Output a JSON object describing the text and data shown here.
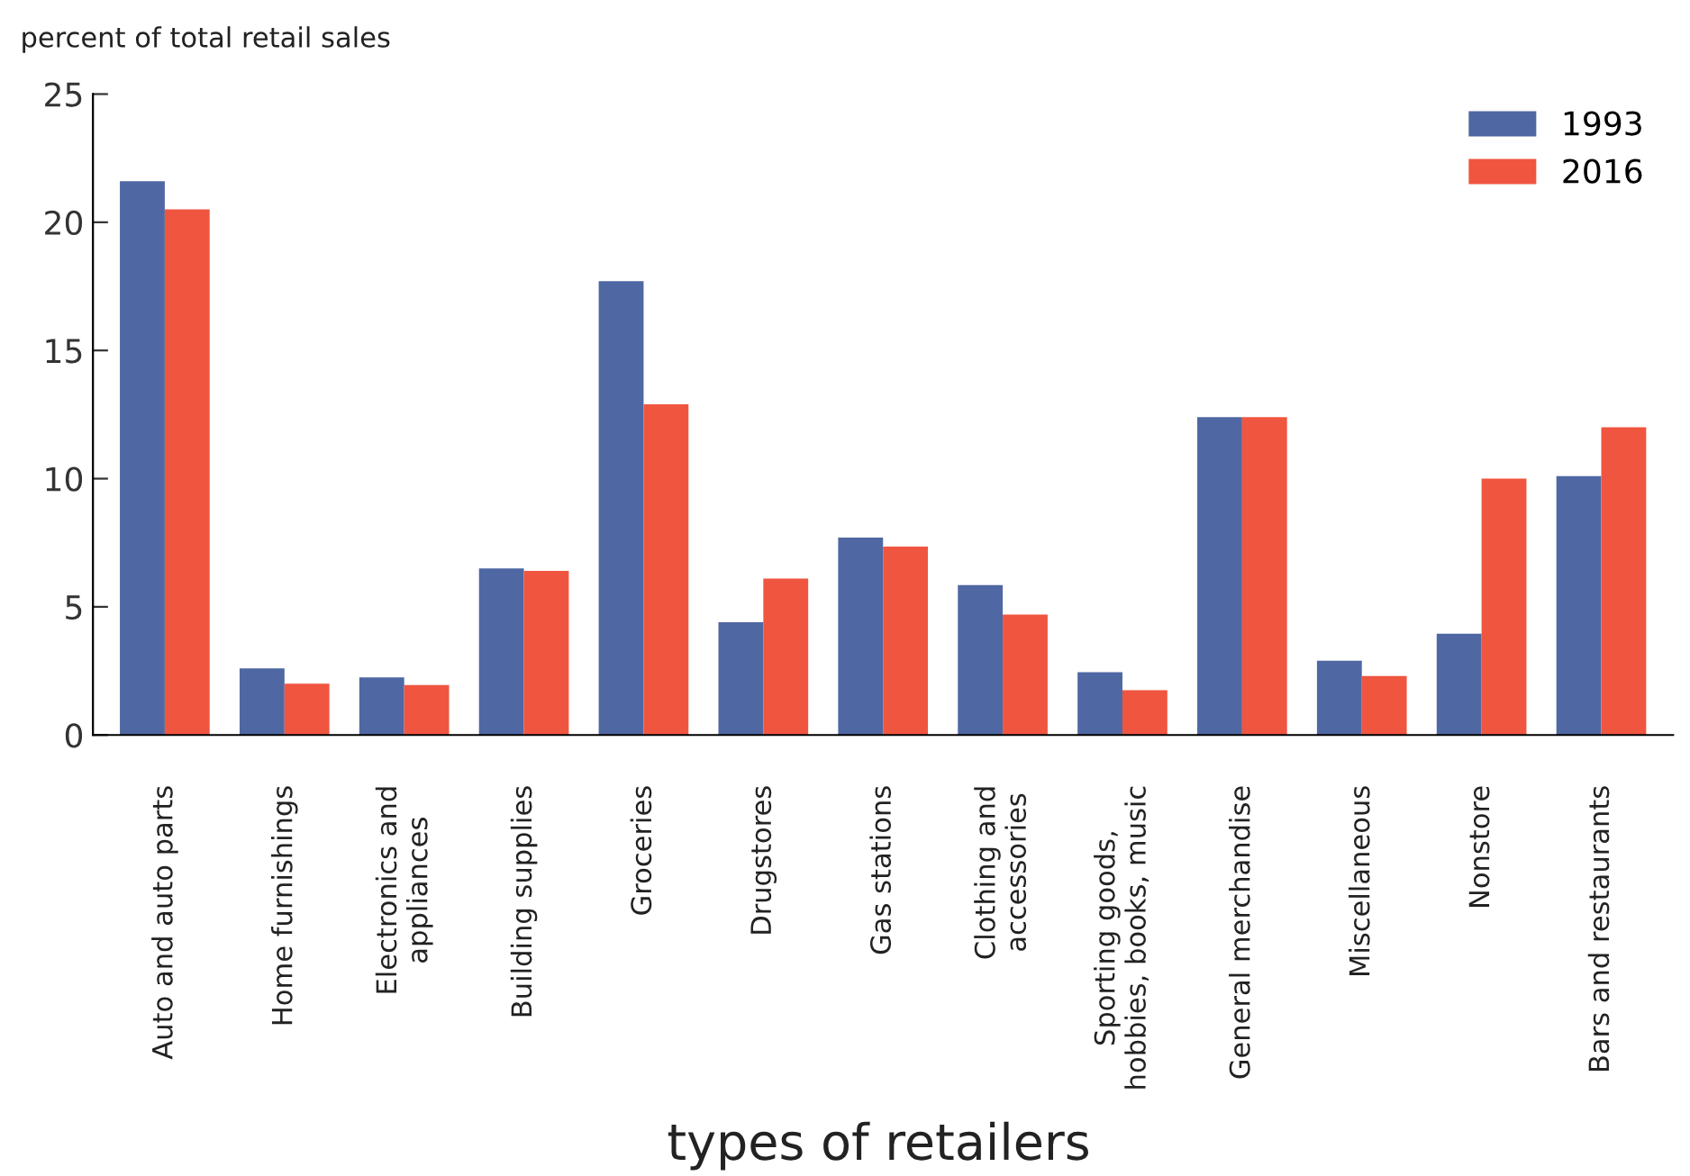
{
  "chart_data": {
    "type": "bar",
    "ylabel": "percent of total retail sales",
    "xlabel": "types of retailers",
    "categories": [
      "Auto and auto parts",
      "Home furnishings",
      "Electronics and\nappliances",
      "Building supplies",
      "Groceries",
      "Drugstores",
      "Gas stations",
      "Clothing and\naccessories",
      "Sporting goods,\nhobbies, books, music",
      "General merchandise",
      "Miscellaneous",
      "Nonstore",
      "Bars and restaurants"
    ],
    "series": [
      {
        "name": "1993",
        "color": "#4f68a3",
        "values": [
          21.6,
          2.6,
          2.25,
          6.5,
          17.7,
          4.4,
          7.7,
          5.85,
          2.45,
          12.4,
          2.9,
          3.95,
          10.1
        ]
      },
      {
        "name": "2016",
        "color": "#f05540",
        "values": [
          20.5,
          2.0,
          1.95,
          6.4,
          12.9,
          6.1,
          7.35,
          4.7,
          1.75,
          12.4,
          2.3,
          10.0,
          12.0
        ]
      }
    ],
    "ylim": [
      0,
      25
    ],
    "yticks": [
      0,
      5,
      10,
      15,
      20,
      25
    ],
    "grid": false,
    "legend": "top right"
  }
}
